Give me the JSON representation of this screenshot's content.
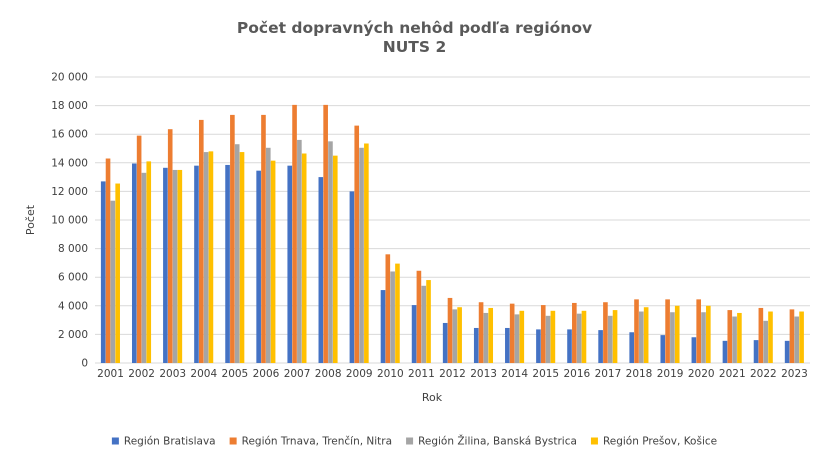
{
  "chart_data": {
    "type": "bar",
    "title": "Počet dopravných nehôd podľa regiónov",
    "subtitle": "NUTS 2",
    "xlabel": "Rok",
    "ylabel": "Počet",
    "ylim": [
      0,
      20000
    ],
    "yticks": [
      "0",
      "2 000",
      "4 000",
      "6 000",
      "8 000",
      "10 000",
      "12 000",
      "14 000",
      "16 000",
      "18 000",
      "20 000"
    ],
    "grid": true,
    "legend_position": "bottom",
    "categories": [
      "2001",
      "2002",
      "2003",
      "2004",
      "2005",
      "2006",
      "2007",
      "2008",
      "2009",
      "2010",
      "2011",
      "2012",
      "2013",
      "2014",
      "2015",
      "2016",
      "2017",
      "2018",
      "2019",
      "2020",
      "2021",
      "2022",
      "2023"
    ],
    "series": [
      {
        "name": "Región Bratislava",
        "color": "#4472c4",
        "values": [
          12700,
          13950,
          13650,
          13800,
          13850,
          13450,
          13800,
          13000,
          12000,
          5100,
          4050,
          2800,
          2450,
          2450,
          2350,
          2350,
          2300,
          2150,
          1950,
          1800,
          1550,
          1600,
          1550
        ]
      },
      {
        "name": "Región Trnava, Trenčín, Nitra",
        "color": "#ed7d31",
        "values": [
          14300,
          15900,
          16350,
          17000,
          17350,
          17350,
          18050,
          18050,
          16600,
          7600,
          6450,
          4550,
          4250,
          4150,
          4050,
          4200,
          4250,
          4450,
          4450,
          4450,
          3700,
          3850,
          3750
        ]
      },
      {
        "name": "Región Žilina, Banská Bystrica",
        "color": "#a5a5a5",
        "values": [
          11350,
          13300,
          13500,
          14750,
          15300,
          15050,
          15600,
          15500,
          15050,
          6400,
          5400,
          3750,
          3500,
          3400,
          3300,
          3450,
          3300,
          3600,
          3550,
          3550,
          3250,
          2950,
          3250
        ]
      },
      {
        "name": "Región Prešov, Košice",
        "color": "#ffc000",
        "values": [
          12550,
          14100,
          13500,
          14800,
          14750,
          14150,
          14650,
          14500,
          15350,
          6950,
          5800,
          3900,
          3850,
          3650,
          3650,
          3650,
          3700,
          3900,
          4000,
          4000,
          3500,
          3600,
          3600
        ]
      }
    ]
  }
}
